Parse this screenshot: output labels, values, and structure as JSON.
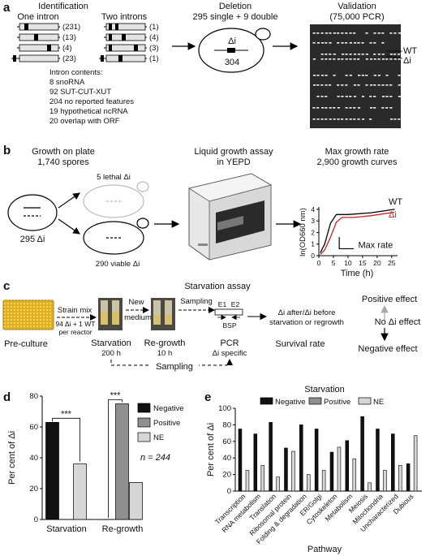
{
  "panel_a": {
    "label": "a",
    "identification_title": "Identification",
    "one_intron_title": "One intron",
    "two_introns_title": "Two introns",
    "one_intron_counts": [
      "(231)",
      "(13)",
      "(4)",
      "(23)"
    ],
    "two_introns_counts": [
      "(1)",
      "(4)",
      "(3)",
      "(1)"
    ],
    "intron_contents_title": "Intron contents:",
    "intron_contents": [
      "8 snoRNA",
      "92 SUT-CUT-XUT",
      "204 no reported features",
      "19 hypothetical ncRNA",
      "20 overlap with ORF"
    ],
    "deletion_title": "Deletion",
    "deletion_subtitle": "295 single + 9 double",
    "delta_i": "Δi",
    "deletion_number": "304",
    "validation_title": "Validation",
    "validation_subtitle": "(75,000 PCR)",
    "gel_wt": "WT",
    "gel_di": "Δi"
  },
  "panel_b": {
    "label": "b",
    "plate_title_1": "Growth on plate",
    "plate_title_2": "1,740 spores",
    "count_295": "295 Δi",
    "lethal": "5 lethal Δi",
    "viable": "290 viable Δi",
    "liquid_title_1": "Liquid growth assay",
    "liquid_title_2": "in YEPD",
    "max_title_1": "Max growth rate",
    "max_title_2": "2,900 growth curves",
    "wt": "WT",
    "di": "Δi",
    "max_rate": "Max rate",
    "ylabel": "ln(OD660 nm)",
    "xlabel": "Time (h)",
    "y_ticks": [
      "0",
      "1",
      "2",
      "3",
      "4"
    ],
    "x_ticks": [
      "0",
      "5",
      "10",
      "15",
      "20",
      "25"
    ]
  },
  "panel_c": {
    "label": "c",
    "title": "Starvation assay",
    "strain_mix": "Strain mix",
    "per_reactor_1": "94 Δi + 1 WT",
    "per_reactor_2": "per reactor",
    "new_medium_1": "New",
    "new_medium_2": "medium",
    "sampling_top": "Sampling",
    "e1": "E1",
    "e2": "E2",
    "bsp": "BSP",
    "pre_culture": "Pre-culture",
    "starvation": "Starvation",
    "starvation_time": "200 h",
    "regrowth": "Re-growth",
    "regrowth_time": "10 h",
    "pcr": "PCR",
    "pcr_sub": "Δi specific",
    "ratio_1": "Δi after/Δi before",
    "ratio_2": "starvation or regrowth",
    "survival": "Survival rate",
    "positive": "Positive effect",
    "no_effect": "No Δi effect",
    "negative": "Negative effect",
    "sampling_bottom": "Sampling"
  },
  "colors": {
    "negative": "#111111",
    "positive": "#8f8f8f",
    "ne": "#d6d6d6",
    "red": "#cc2222"
  },
  "panel_d": {
    "label": "d",
    "n_text": "n = 244",
    "sig_1": "***",
    "sig_2": "***",
    "chart_data": {
      "type": "bar",
      "categories": [
        "Starvation",
        "Re-growth"
      ],
      "series": [
        {
          "name": "Negative",
          "values": [
            63,
            0
          ]
        },
        {
          "name": "Positive",
          "values": [
            0,
            75
          ]
        },
        {
          "name": "NE",
          "values": [
            36,
            24
          ]
        }
      ],
      "ylabel": "Per cent of Δi",
      "ylim": [
        0,
        80
      ],
      "yticks": [
        0,
        20,
        40,
        60,
        80
      ],
      "legend": "top-right"
    }
  },
  "panel_e": {
    "label": "e",
    "chart_data": {
      "type": "bar",
      "title": "Starvation",
      "categories": [
        "Transcription",
        "RNA metabolism",
        "Translation",
        "Ribosomal protein",
        "Folding & degradation",
        "ER/Golgi",
        "Cytoskeleton",
        "Metabolism",
        "Meiosis",
        "Mitochondria",
        "Uncharacterized",
        "Dubious"
      ],
      "series": [
        {
          "name": "Negative",
          "values": [
            75,
            69,
            83,
            52,
            80,
            75,
            47,
            61,
            90,
            75,
            69,
            33
          ]
        },
        {
          "name": "Positive",
          "values": [
            0,
            0,
            0,
            0,
            0,
            0,
            0,
            0,
            0,
            0,
            0,
            0
          ]
        },
        {
          "name": "NE",
          "values": [
            25,
            31,
            17,
            48,
            20,
            25,
            53,
            39,
            10,
            25,
            31,
            67
          ]
        }
      ],
      "xlabel": "Pathway",
      "ylabel": "Per cent of Δi",
      "ylim": [
        0,
        100
      ],
      "yticks": [
        0,
        20,
        40,
        60,
        80,
        100
      ],
      "legend": "top"
    }
  }
}
